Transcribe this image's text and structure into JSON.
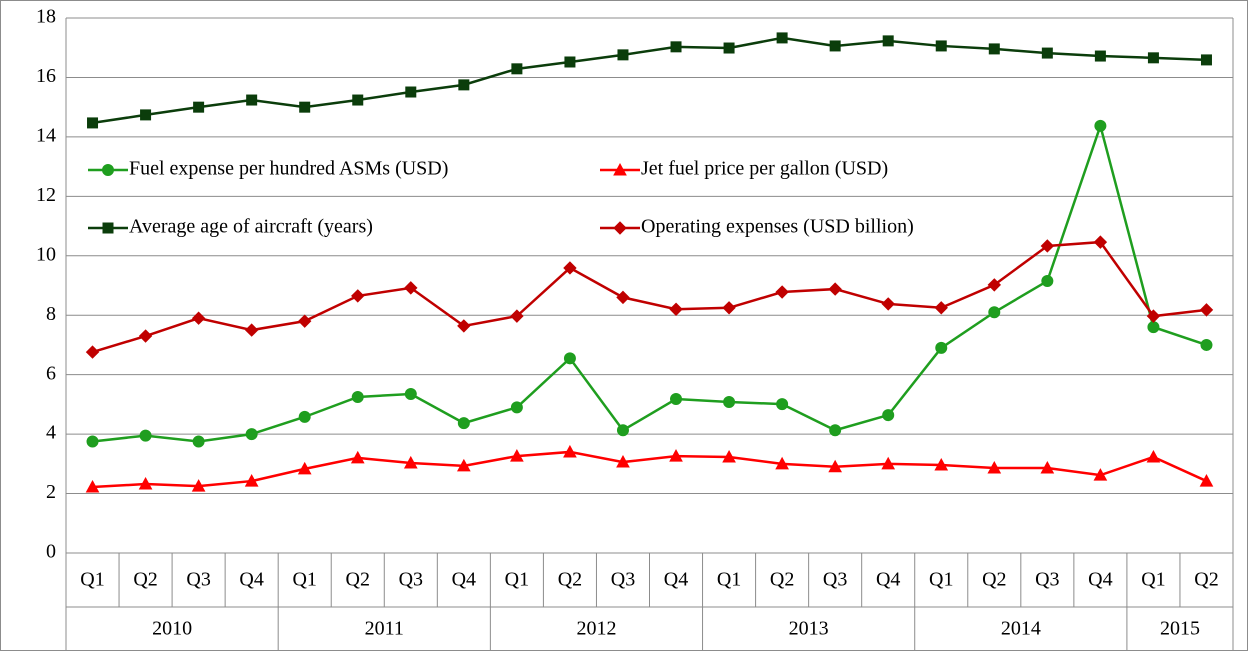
{
  "chart_data": {
    "type": "line",
    "category_groups": [
      {
        "name": "2010",
        "categories": [
          "Q1",
          "Q2",
          "Q3",
          "Q4"
        ]
      },
      {
        "name": "2011",
        "categories": [
          "Q1",
          "Q2",
          "Q3",
          "Q4"
        ]
      },
      {
        "name": "2012",
        "categories": [
          "Q1",
          "Q2",
          "Q3",
          "Q4"
        ]
      },
      {
        "name": "2013",
        "categories": [
          "Q1",
          "Q2",
          "Q3",
          "Q4"
        ]
      },
      {
        "name": "2014",
        "categories": [
          "Q1",
          "Q2",
          "Q3",
          "Q4"
        ]
      },
      {
        "name": "2015",
        "categories": [
          "Q1",
          "Q2"
        ]
      }
    ],
    "series": [
      {
        "name": "Fuel expense per hundred ASMs (USD)",
        "color": "#1f9e1f",
        "marker": "circle",
        "values": [
          3.75,
          3.95,
          3.75,
          4.0,
          4.58,
          5.25,
          5.35,
          4.37,
          4.9,
          6.55,
          4.13,
          5.18,
          5.08,
          5.01,
          4.13,
          4.64,
          6.9,
          8.1,
          9.15,
          14.37,
          7.6,
          7.0
        ]
      },
      {
        "name": "Jet fuel price per gallon (USD)",
        "color": "#ff0000",
        "marker": "triangle",
        "values": [
          2.22,
          2.32,
          2.25,
          2.42,
          2.83,
          3.2,
          3.03,
          2.93,
          3.26,
          3.4,
          3.06,
          3.26,
          3.23,
          3.0,
          2.9,
          3.0,
          2.96,
          2.86,
          2.86,
          2.62,
          3.23,
          2.42
        ]
      },
      {
        "name": "Average age of aircraft (years)",
        "color": "#0b3d0b",
        "marker": "square",
        "values": [
          14.47,
          14.74,
          15.0,
          15.24,
          15.0,
          15.24,
          15.51,
          15.75,
          16.29,
          16.52,
          16.76,
          17.03,
          16.99,
          17.33,
          17.06,
          17.23,
          17.06,
          16.96,
          16.82,
          16.72,
          16.66,
          16.59
        ]
      },
      {
        "name": "Operating expenses (USD billion)",
        "color": "#c00000",
        "marker": "diamond",
        "values": [
          6.76,
          7.3,
          7.9,
          7.5,
          7.8,
          8.65,
          8.92,
          7.64,
          7.97,
          9.59,
          8.6,
          8.2,
          8.25,
          8.78,
          8.88,
          8.38,
          8.25,
          9.02,
          10.33,
          10.46,
          7.97,
          8.18
        ]
      }
    ],
    "ylim": [
      0,
      18
    ],
    "yticks": [
      0,
      2,
      4,
      6,
      8,
      10,
      12,
      14,
      16,
      18
    ],
    "grid": true,
    "legend": "upper-left"
  }
}
